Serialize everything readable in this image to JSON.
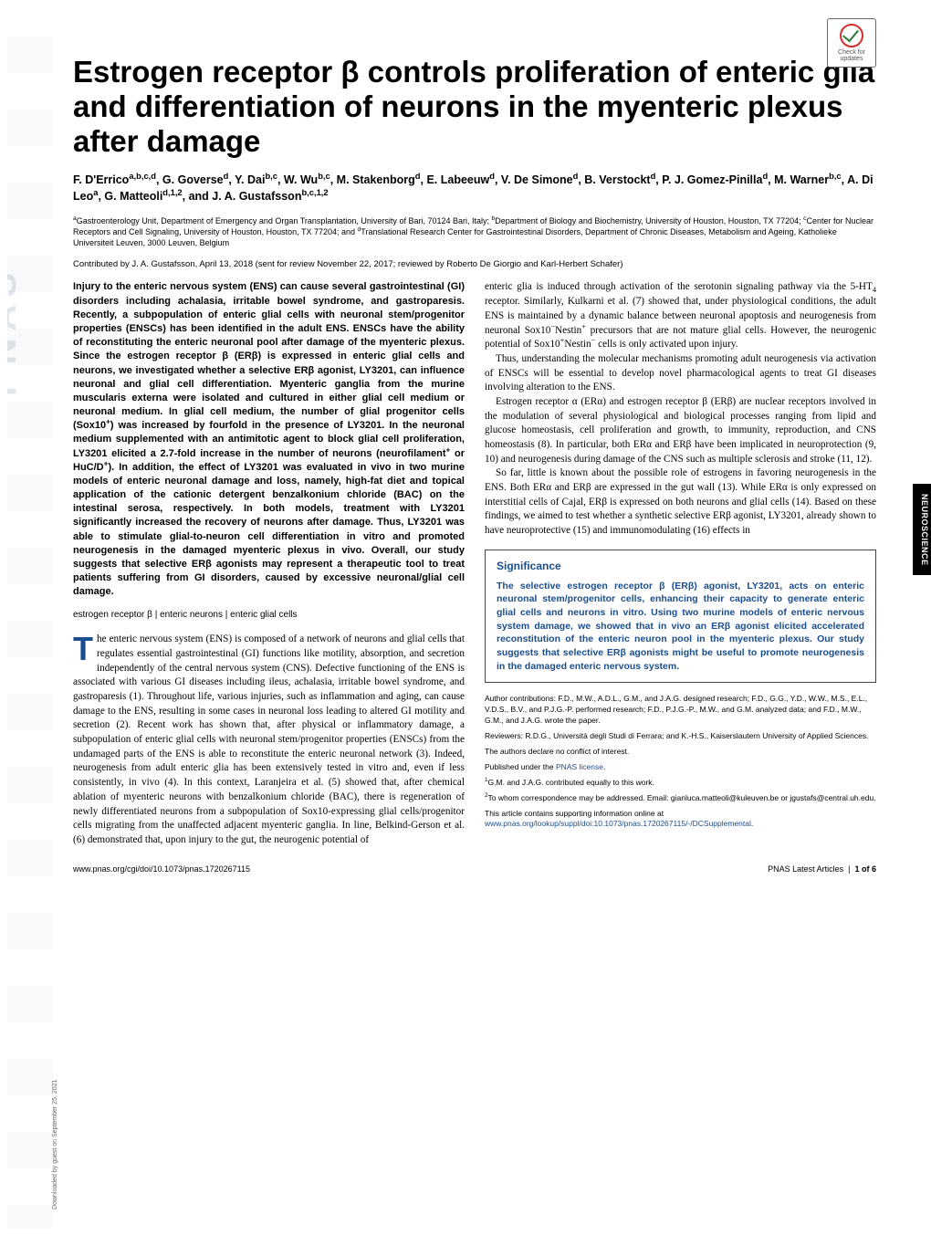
{
  "badge": {
    "line1": "Check for",
    "line2": "updates"
  },
  "section_tab": "NEUROSCIENCE",
  "download_note": "Downloaded by guest on September 25, 2021",
  "pnas_sidebar": "PNAS",
  "title": "Estrogen receptor β controls proliferation of enteric glia and differentiation of neurons in the myenteric plexus after damage",
  "authors_html": "F. D'Errico<sup>a,b,c,d</sup>, G. Goverse<sup>d</sup>, Y. Dai<sup>b,c</sup>, W. Wu<sup>b,c</sup>, M. Stakenborg<sup>d</sup>, E. Labeeuw<sup>d</sup>, V. De Simone<sup>d</sup>, B. Verstockt<sup>d</sup>, P. J. Gomez-Pinilla<sup>d</sup>, M. Warner<sup>b,c</sup>, A. Di Leo<sup>a</sup>, G. Matteoli<sup>d,1,2</sup>, and J. A. Gustafsson<sup>b,c,1,2</sup>",
  "affiliations": "<sup>a</sup>Gastroenterology Unit, Department of Emergency and Organ Transplantation, University of Bari, 70124 Bari, Italy; <sup>b</sup>Department of Biology and Biochemistry, University of Houston, Houston, TX 77204; <sup>c</sup>Center for Nuclear Receptors and Cell Signaling, University of Houston, Houston, TX 77204; and <sup>d</sup>Translational Research Center for Gastrointestinal Disorders, Department of Chronic Diseases, Metabolism and Ageing, Katholieke Universiteit Leuven, 3000 Leuven, Belgium",
  "contributed": "Contributed by J. A. Gustafsson, April 13, 2018 (sent for review November 22, 2017; reviewed by Roberto De Giorgio and Karl-Herbert Schafer)",
  "abstract": "Injury to the enteric nervous system (ENS) can cause several gastrointestinal (GI) disorders including achalasia, irritable bowel syndrome, and gastroparesis. Recently, a subpopulation of enteric glial cells with neuronal stem/progenitor properties (ENSCs) has been identified in the adult ENS. ENSCs have the ability of reconstituting the enteric neuronal pool after damage of the myenteric plexus. Since the estrogen receptor β (ERβ) is expressed in enteric glial cells and neurons, we investigated whether a selective ERβ agonist, LY3201, can influence neuronal and glial cell differentiation. Myenteric ganglia from the murine muscularis externa were isolated and cultured in either glial cell medium or neuronal medium. In glial cell medium, the number of glial progenitor cells (Sox10<sup>+</sup>) was increased by fourfold in the presence of LY3201. In the neuronal medium supplemented with an antimitotic agent to block glial cell proliferation, LY3201 elicited a 2.7-fold increase in the number of neurons (neurofilament<sup>+</sup> or HuC/D<sup>+</sup>). In addition, the effect of LY3201 was evaluated in vivo in two murine models of enteric neuronal damage and loss, namely, high-fat diet and topical application of the cationic detergent benzalkonium chloride (BAC) on the intestinal serosa, respectively. In both models, treatment with LY3201 significantly increased the recovery of neurons after damage. Thus, LY3201 was able to stimulate glial-to-neuron cell differentiation in vitro and promoted neurogenesis in the damaged myenteric plexus in vivo. Overall, our study suggests that selective ERβ agonists may represent a therapeutic tool to treat patients suffering from GI disorders, caused by excessive neuronal/glial cell damage.",
  "keywords": "estrogen receptor β | enteric neurons | enteric glial cells",
  "intro_para1": "he enteric nervous system (ENS) is composed of a network of neurons and glial cells that regulates essential gastrointestinal (GI) functions like motility, absorption, and secretion independently of the central nervous system (CNS). Defective functioning of the ENS is associated with various GI diseases including ileus, achalasia, irritable bowel syndrome, and gastroparesis (1). Throughout life, various injuries, such as inflammation and aging, can cause damage to the ENS, resulting in some cases in neuronal loss leading to altered GI motility and secretion (2). Recent work has shown that, after physical or inflammatory damage, a subpopulation of enteric glial cells with neuronal stem/progenitor properties (ENSCs) from the undamaged parts of the ENS is able to reconstitute the enteric neuronal network (3). Indeed, neurogenesis from adult enteric glia has been extensively tested in vitro and, even if less consistently, in vivo (4). In this context, Laranjeira et al. (5) showed that, after chemical ablation of myenteric neurons with benzalkonium chloride (BAC), there is regeneration of newly differentiated neurons from a subpopulation of Sox10-expressing glial cells/progenitor cells migrating from the unaffected adjacent myenteric ganglia. In line, Belkind-Gerson et al. (6) demonstrated that, upon injury to the gut, the neurogenic potential of",
  "right_para1": "enteric glia is induced through activation of the serotonin signaling pathway via the 5-HT<sub>4</sub> receptor. Similarly, Kulkarni et al. (7) showed that, under physiological conditions, the adult ENS is maintained by a dynamic balance between neuronal apoptosis and neurogenesis from neuronal Sox10<sup>−</sup>Nestin<sup>+</sup> precursors that are not mature glial cells. However, the neurogenic potential of Sox10<sup>+</sup>Nestin<sup>−</sup> cells is only activated upon injury.",
  "right_para2": "Thus, understanding the molecular mechanisms promoting adult neurogenesis via activation of ENSCs will be essential to develop novel pharmacological agents to treat GI diseases involving alteration to the ENS.",
  "right_para3": "Estrogen receptor α (ERα) and estrogen receptor β (ERβ) are nuclear receptors involved in the modulation of several physiological and biological processes ranging from lipid and glucose homeostasis, cell proliferation and growth, to immunity, reproduction, and CNS homeostasis (8). In particular, both ERα and ERβ have been implicated in neuroprotection (9, 10) and neurogenesis during damage of the CNS such as multiple sclerosis and stroke (11, 12).",
  "right_para4": "So far, little is known about the possible role of estrogens in favoring neurogenesis in the ENS. Both ERα and ERβ are expressed in the gut wall (13). While ERα is only expressed on interstitial cells of Cajal, ERβ is expressed on both neurons and glial cells (14). Based on these findings, we aimed to test whether a synthetic selective ERβ agonist, LY3201, already shown to have neuroprotective (15) and immunomodulating (16) effects in",
  "significance": {
    "title": "Significance",
    "body": "The selective estrogen receptor β (ERβ) agonist, LY3201, acts on enteric neuronal stem/progenitor cells, enhancing their capacity to generate enteric glial cells and neurons in vitro. Using two murine models of enteric nervous system damage, we showed that in vivo an ERβ agonist elicited accelerated reconstitution of the enteric neuron pool in the myenteric plexus. Our study suggests that selective ERβ agonists might be useful to promote neurogenesis in the damaged enteric nervous system."
  },
  "footnotes": {
    "author_contrib": "Author contributions: F.D., M.W., A.D.L., G.M., and J.A.G. designed research; F.D., G.G., Y.D., W.W., M.S., E.L., V.D.S., B.V., and P.J.G.-P. performed research; F.D., P.J.G.-P., M.W., and G.M. analyzed data; and F.D., M.W., G.M., and J.A.G. wrote the paper.",
    "reviewers": "Reviewers: R.D.G., Università degli Studi di Ferrara; and K.-H.S., Kaiserslautern University of Applied Sciences.",
    "conflict": "The authors declare no conflict of interest.",
    "license_pre": "Published under the ",
    "license_link": "PNAS license",
    "license_post": ".",
    "equal": "<sup>1</sup>G.M. and J.A.G. contributed equally to this work.",
    "corresp": "<sup>2</sup>To whom correspondence may be addressed. Email: gianluca.matteoli@kuleuven.be or jgustafs@central.uh.edu.",
    "supp_pre": "This article contains supporting information online at ",
    "supp_link": "www.pnas.org/lookup/suppl/doi:10.1073/pnas.1720267115/-/DCSupplemental",
    "supp_post": "."
  },
  "footer": {
    "left": "www.pnas.org/cgi/doi/10.1073/pnas.1720267115",
    "right_a": "PNAS Latest Articles",
    "right_b": "1 of 6"
  },
  "colors": {
    "link": "#1a4e8e",
    "sig_blue": "#1a4e8e",
    "tab_bg": "#000000",
    "tab_fg": "#ffffff",
    "check_red": "#d32f2f",
    "check_green": "#2e7d32"
  }
}
